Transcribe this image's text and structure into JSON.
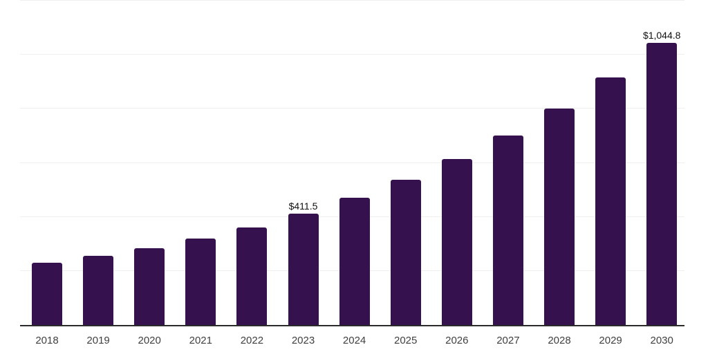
{
  "chart_data": {
    "type": "bar",
    "title": "",
    "xlabel": "",
    "ylabel": "",
    "categories": [
      "2018",
      "2019",
      "2020",
      "2021",
      "2022",
      "2023",
      "2024",
      "2025",
      "2026",
      "2027",
      "2028",
      "2029",
      "2030"
    ],
    "values": [
      229.3,
      254.8,
      282.8,
      320.9,
      361.0,
      411.5,
      470.1,
      537.2,
      613.8,
      701.2,
      801.1,
      915.3,
      1044.8
    ],
    "data_labels": [
      "",
      "",
      "",
      "",
      "",
      "$411.5",
      "",
      "",
      "",
      "",
      "",
      "",
      "$1,044.8"
    ],
    "ylim": [
      0,
      1200
    ],
    "gridline_step": 200,
    "grid": "horizontal",
    "legend": "none",
    "colors": {
      "bar": "#35114E",
      "axis_line": "#2b2b2b",
      "gridline": "#efefef",
      "axis_text": "#3f3f3f",
      "value_text": "#111111",
      "background": "#ffffff"
    }
  }
}
